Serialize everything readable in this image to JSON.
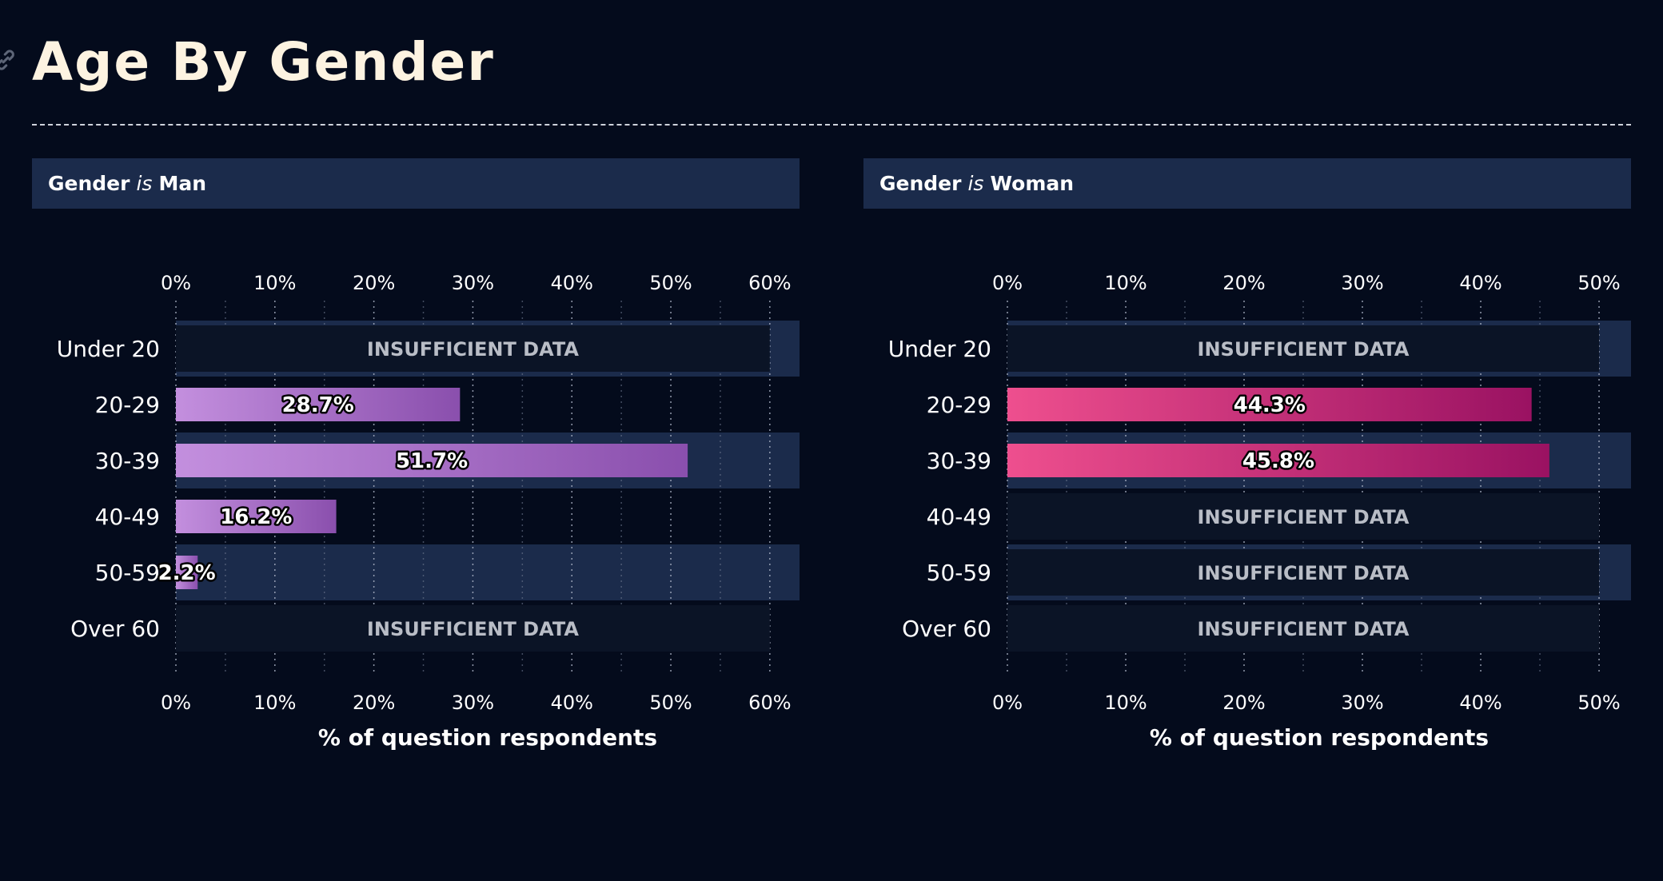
{
  "page": {
    "title": "Age By Gender",
    "link_icon": "link-icon"
  },
  "colors": {
    "background": "#040b1c",
    "band": "#1b2b4b",
    "insufficient_bg": "#0b1426",
    "insufficient_text": "#b9bdc6",
    "man_gradient": [
      "#c38fde",
      "#8a4fad"
    ],
    "woman_gradient": [
      "#ee4f8e",
      "#9a1262"
    ]
  },
  "panels": [
    {
      "header": {
        "prefix": "Gender",
        "op": "is",
        "value": "Man"
      }
    },
    {
      "header": {
        "prefix": "Gender",
        "op": "is",
        "value": "Woman"
      }
    }
  ],
  "chart_data": [
    {
      "type": "bar",
      "orientation": "horizontal",
      "categories": [
        "Under 20",
        "20-29",
        "30-39",
        "40-49",
        "50-59",
        "Over 60"
      ],
      "values": [
        null,
        28.7,
        51.7,
        16.2,
        2.2,
        null
      ],
      "data_labels": [
        "",
        "28.7%",
        "51.7%",
        "16.2%",
        "2.2%",
        ""
      ],
      "insufficient_label": "INSUFFICIENT DATA",
      "xlim": [
        0,
        63
      ],
      "xticks": [
        0,
        10,
        20,
        30,
        40,
        50,
        60
      ],
      "xtick_labels": [
        "0%",
        "10%",
        "20%",
        "30%",
        "40%",
        "50%",
        "60%"
      ],
      "xlabel": "% of question respondents",
      "ylabel": "",
      "grid": true
    },
    {
      "type": "bar",
      "orientation": "horizontal",
      "categories": [
        "Under 20",
        "20-29",
        "30-39",
        "40-49",
        "50-59",
        "Over 60"
      ],
      "values": [
        null,
        44.3,
        45.8,
        null,
        null,
        null
      ],
      "data_labels": [
        "",
        "44.3%",
        "45.8%",
        "",
        "",
        ""
      ],
      "insufficient_label": "INSUFFICIENT DATA",
      "xlim": [
        0,
        52.7
      ],
      "xticks": [
        0,
        10,
        20,
        30,
        40,
        50
      ],
      "xtick_labels": [
        "0%",
        "10%",
        "20%",
        "30%",
        "40%",
        "50%"
      ],
      "xlabel": "% of question respondents",
      "ylabel": "",
      "grid": true
    }
  ]
}
